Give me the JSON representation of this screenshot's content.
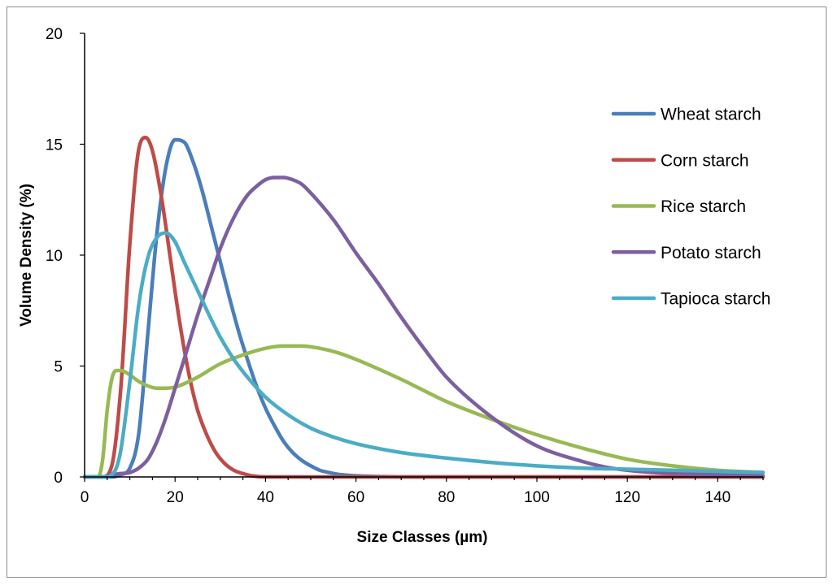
{
  "chart_data": {
    "type": "line",
    "title": "",
    "xlabel": "Size Classes (µm)",
    "ylabel": "Volume Density (%)",
    "xlim": [
      0,
      150
    ],
    "ylim": [
      0,
      20
    ],
    "x_ticks": [
      0,
      20,
      40,
      60,
      80,
      100,
      120,
      140
    ],
    "y_ticks": [
      0,
      5,
      10,
      15,
      20
    ],
    "legend_position": "right",
    "grid": false,
    "series": [
      {
        "name": "Wheat starch",
        "color": "#4a7ebb",
        "x": [
          0,
          6,
          8,
          10,
          12,
          14,
          16,
          18,
          20,
          22,
          24,
          26,
          28,
          30,
          32,
          34,
          36,
          38,
          40,
          42,
          44,
          46,
          48,
          50,
          52,
          54,
          56,
          58,
          60,
          65,
          70,
          80,
          100,
          120,
          150
        ],
        "y": [
          0,
          0,
          0.1,
          0.4,
          2.0,
          6.5,
          11.0,
          14.0,
          15.2,
          15.1,
          14.2,
          12.9,
          11.3,
          9.7,
          8.1,
          6.6,
          5.3,
          4.1,
          3.1,
          2.3,
          1.6,
          1.1,
          0.75,
          0.5,
          0.3,
          0.2,
          0.12,
          0.08,
          0.05,
          0.02,
          0,
          0,
          0,
          0,
          0
        ]
      },
      {
        "name": "Corn starch",
        "color": "#be4b48",
        "x": [
          0,
          4,
          6,
          8,
          10,
          12,
          13.5,
          15,
          17,
          19,
          21,
          23,
          25,
          27,
          29,
          31,
          33,
          35,
          37,
          40,
          45,
          60,
          100,
          150
        ],
        "y": [
          0,
          0,
          0.5,
          4.0,
          10.5,
          14.8,
          15.3,
          14.7,
          12.6,
          9.8,
          7.0,
          4.7,
          3.0,
          1.9,
          1.1,
          0.6,
          0.3,
          0.15,
          0.05,
          0,
          0,
          0,
          0,
          0
        ]
      },
      {
        "name": "Rice starch",
        "color": "#98b954",
        "x": [
          0,
          3,
          4,
          5,
          6,
          7,
          8,
          10,
          12,
          14,
          16,
          18,
          20,
          22,
          25,
          30,
          35,
          40,
          44,
          48,
          52,
          56,
          60,
          70,
          80,
          90,
          100,
          110,
          120,
          130,
          140,
          150
        ],
        "y": [
          0,
          0,
          0.8,
          3.0,
          4.4,
          4.8,
          4.8,
          4.6,
          4.3,
          4.1,
          4.0,
          4.0,
          4.05,
          4.2,
          4.5,
          5.1,
          5.5,
          5.8,
          5.9,
          5.9,
          5.8,
          5.6,
          5.3,
          4.4,
          3.4,
          2.6,
          1.9,
          1.3,
          0.8,
          0.5,
          0.3,
          0.2
        ]
      },
      {
        "name": "Potato starch",
        "color": "#7d5fa0",
        "x": [
          0,
          4,
          6,
          8,
          10,
          12,
          14,
          16,
          18,
          20,
          22,
          25,
          28,
          30,
          33,
          36,
          38,
          40,
          42,
          44,
          46,
          48,
          50,
          55,
          60,
          65,
          70,
          75,
          80,
          90,
          100,
          110,
          115,
          120,
          130,
          140,
          150
        ],
        "y": [
          0,
          0,
          0.1,
          0.15,
          0.2,
          0.4,
          0.8,
          1.6,
          2.7,
          4.0,
          5.3,
          7.3,
          9.1,
          10.3,
          11.7,
          12.7,
          13.1,
          13.4,
          13.5,
          13.5,
          13.4,
          13.2,
          12.8,
          11.6,
          10.1,
          8.7,
          7.2,
          5.8,
          4.5,
          2.7,
          1.4,
          0.7,
          0.45,
          0.3,
          0.15,
          0.1,
          0.05
        ]
      },
      {
        "name": "Tapioca starch",
        "color": "#4bacc6",
        "x": [
          0,
          5,
          6,
          7,
          8,
          10,
          12,
          14,
          16,
          18,
          20,
          22,
          25,
          28,
          30,
          33,
          36,
          40,
          45,
          50,
          55,
          60,
          70,
          80,
          90,
          100,
          110,
          120,
          130,
          140,
          150
        ],
        "y": [
          0,
          0,
          0.1,
          0.4,
          1.2,
          4.3,
          7.8,
          9.9,
          10.8,
          11.0,
          10.6,
          9.7,
          8.4,
          7.1,
          6.3,
          5.3,
          4.5,
          3.6,
          2.8,
          2.2,
          1.8,
          1.5,
          1.1,
          0.85,
          0.65,
          0.5,
          0.4,
          0.35,
          0.3,
          0.25,
          0.2
        ]
      }
    ]
  }
}
